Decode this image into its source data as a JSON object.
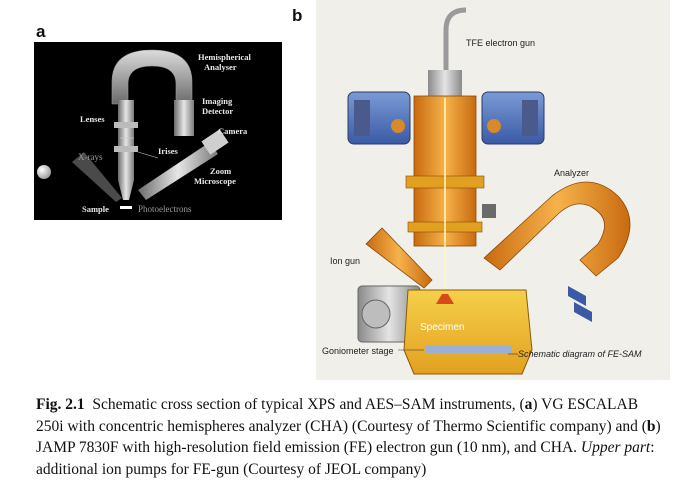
{
  "panel_a": {
    "letter": "a",
    "labels": {
      "hemispherical": "Hemispherical",
      "analyser": "Analyser",
      "imaging": "Imaging",
      "detector": "Detector",
      "lenses": "Lenses",
      "irises": "Irises",
      "camera": "Camera",
      "xrays": "X-rays",
      "zoom": "Zoom",
      "microscope": "Microscope",
      "sample": "Sample",
      "photoelectrons": "Photoelectrons"
    }
  },
  "panel_b": {
    "letter": "b",
    "labels": {
      "tfe_gun": "TFE electron gun",
      "analyzer": "Analyzer",
      "ion_gun": "Ion gun",
      "specimen": "Specimen",
      "goniometer": "Goniometer stage",
      "schematic": "Schematic diagram of FE-SAM"
    }
  },
  "caption": {
    "fig_label": "Fig. 2.1",
    "text_1": "Schematic cross section of typical XPS and AES–SAM instruments, (",
    "a": "a",
    "text_2": ") VG ESCALAB 250i with concentric hemispheres analyzer (CHA) (Courtesy of Thermo Scientific company) and (",
    "b": "b",
    "text_3": ") JAMP 7830F with high-resolution field emission (FE) electron gun (10 nm), and CHA. ",
    "upper_part": "Upper part",
    "text_4": ": additional ion pumps for FE-gun (Courtesy of JEOL company)"
  }
}
